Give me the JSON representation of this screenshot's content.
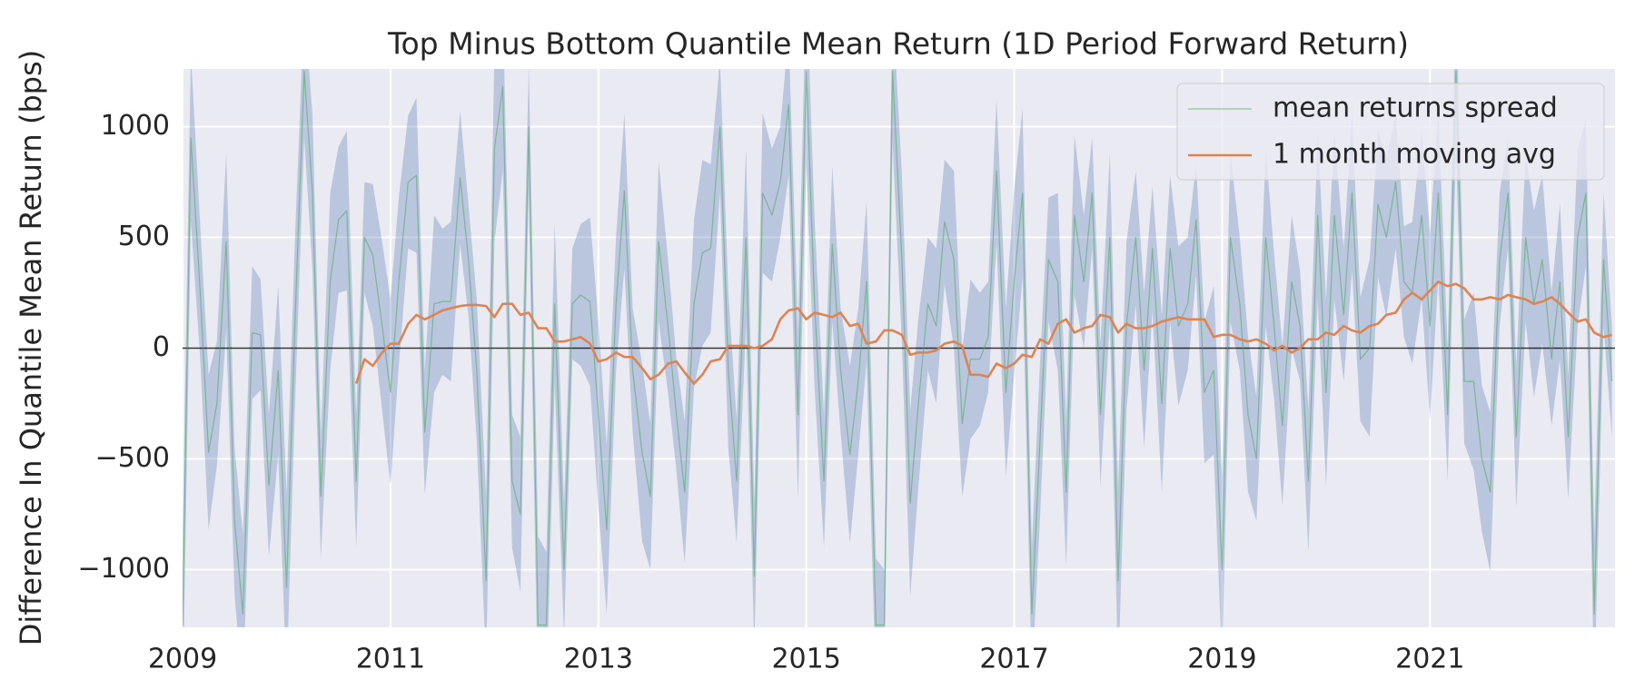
{
  "chart_data": {
    "type": "line",
    "title": "Top Minus Bottom Quantile Mean Return (1D Period Forward Return)",
    "y_label": "Difference In Quantile Mean Return (bps)",
    "x": [
      2009,
      2009.08,
      2009.17,
      2009.25,
      2009.33,
      2009.42,
      2009.5,
      2009.58,
      2009.67,
      2009.75,
      2009.83,
      2009.92,
      2010,
      2010.08,
      2010.17,
      2010.25,
      2010.33,
      2010.42,
      2010.5,
      2010.58,
      2010.67,
      2010.75,
      2010.83,
      2010.92,
      2011,
      2011.08,
      2011.17,
      2011.25,
      2011.33,
      2011.42,
      2011.5,
      2011.58,
      2011.67,
      2011.75,
      2011.83,
      2011.92,
      2012,
      2012.08,
      2012.17,
      2012.25,
      2012.33,
      2012.42,
      2012.5,
      2012.58,
      2012.67,
      2012.75,
      2012.83,
      2012.92,
      2013,
      2013.08,
      2013.17,
      2013.25,
      2013.33,
      2013.42,
      2013.5,
      2013.58,
      2013.67,
      2013.75,
      2013.83,
      2013.92,
      2014,
      2014.08,
      2014.17,
      2014.25,
      2014.33,
      2014.42,
      2014.5,
      2014.58,
      2014.67,
      2014.75,
      2014.83,
      2014.92,
      2015,
      2015.08,
      2015.17,
      2015.25,
      2015.33,
      2015.42,
      2015.5,
      2015.58,
      2015.67,
      2015.75,
      2015.83,
      2015.92,
      2016,
      2016.08,
      2016.17,
      2016.25,
      2016.33,
      2016.42,
      2016.5,
      2016.58,
      2016.67,
      2016.75,
      2016.83,
      2016.92,
      2017,
      2017.08,
      2017.17,
      2017.25,
      2017.33,
      2017.42,
      2017.5,
      2017.58,
      2017.67,
      2017.75,
      2017.83,
      2017.92,
      2018,
      2018.08,
      2018.17,
      2018.25,
      2018.33,
      2018.42,
      2018.5,
      2018.58,
      2018.67,
      2018.75,
      2018.83,
      2018.92,
      2019,
      2019.08,
      2019.17,
      2019.25,
      2019.33,
      2019.42,
      2019.5,
      2019.58,
      2019.67,
      2019.75,
      2019.83,
      2019.92,
      2020,
      2020.08,
      2020.17,
      2020.25,
      2020.33,
      2020.42,
      2020.5,
      2020.58,
      2020.67,
      2020.75,
      2020.83,
      2020.92,
      2021,
      2021.08,
      2021.17,
      2021.25,
      2021.33,
      2021.42,
      2021.5,
      2021.58,
      2021.67,
      2021.75,
      2021.83,
      2021.92,
      2022,
      2022.08,
      2022.17,
      2022.25,
      2022.33,
      2022.42,
      2022.5,
      2022.58,
      2022.67,
      2022.75
    ],
    "band_color": "#4c72b0",
    "series": [
      {
        "name": "mean returns spread",
        "color": "#55a868",
        "values": [
          -1250,
          950,
          250,
          -470,
          -250,
          480,
          -780,
          -1200,
          70,
          60,
          -620,
          -100,
          -1080,
          100,
          1250,
          700,
          -670,
          300,
          580,
          620,
          -600,
          500,
          420,
          100,
          -200,
          300,
          750,
          780,
          -380,
          200,
          210,
          210,
          770,
          400,
          -100,
          -1050,
          900,
          1180,
          -600,
          -750,
          1000,
          -1250,
          -1250,
          200,
          -1000,
          200,
          240,
          210,
          -300,
          -820,
          200,
          710,
          -100,
          -470,
          -670,
          480,
          100,
          -300,
          -650,
          200,
          430,
          450,
          1000,
          -100,
          -600,
          500,
          -1030,
          700,
          600,
          750,
          1100,
          -300,
          1250,
          200,
          -600,
          470,
          -100,
          -480,
          -150,
          300,
          -1250,
          -1250,
          1250,
          400,
          -700,
          -240,
          200,
          100,
          570,
          400,
          -340,
          -50,
          -50,
          50,
          800,
          -200,
          300,
          700,
          -1200,
          -400,
          400,
          300,
          -650,
          600,
          300,
          700,
          -300,
          500,
          -1050,
          100,
          500,
          -100,
          450,
          -250,
          450,
          100,
          200,
          580,
          -200,
          -100,
          -1000,
          500,
          200,
          -300,
          -500,
          500,
          100,
          -350,
          300,
          100,
          -600,
          600,
          -200,
          600,
          150,
          700,
          -50,
          0,
          650,
          500,
          750,
          300,
          250,
          600,
          100,
          700,
          -300,
          1250,
          -150,
          -150,
          -500,
          -650,
          400,
          700,
          -400,
          500,
          200,
          400,
          -50,
          300,
          -400,
          500,
          700,
          -1200,
          400,
          -150
        ],
        "std": [
          420,
          380,
          300,
          350,
          280,
          400,
          330,
          360,
          300,
          250,
          320,
          380,
          420,
          380,
          300,
          350,
          280,
          400,
          330,
          360,
          300,
          250,
          320,
          380,
          420,
          380,
          300,
          350,
          280,
          400,
          330,
          360,
          300,
          250,
          320,
          380,
          420,
          380,
          300,
          350,
          280,
          400,
          330,
          360,
          300,
          250,
          320,
          380,
          420,
          380,
          300,
          350,
          280,
          400,
          330,
          360,
          300,
          250,
          320,
          380,
          420,
          380,
          300,
          350,
          280,
          400,
          330,
          360,
          300,
          250,
          320,
          380,
          420,
          380,
          300,
          350,
          280,
          400,
          330,
          360,
          300,
          250,
          320,
          380,
          420,
          380,
          300,
          350,
          280,
          400,
          330,
          360,
          300,
          250,
          320,
          380,
          420,
          380,
          300,
          350,
          280,
          400,
          330,
          360,
          300,
          250,
          320,
          380,
          420,
          380,
          300,
          350,
          280,
          400,
          330,
          360,
          300,
          250,
          320,
          380,
          420,
          380,
          300,
          350,
          280,
          400,
          330,
          360,
          300,
          250,
          320,
          380,
          420,
          380,
          300,
          350,
          280,
          400,
          330,
          360,
          300,
          250,
          320,
          380,
          420,
          380,
          300,
          350,
          280,
          400,
          330,
          360,
          300,
          250,
          320,
          380,
          420,
          380,
          300,
          350,
          280,
          400,
          330,
          360,
          300,
          250
        ]
      },
      {
        "name": "1 month moving avg",
        "color": "#dd8452",
        "values": [
          null,
          null,
          null,
          null,
          null,
          null,
          null,
          null,
          null,
          null,
          null,
          null,
          null,
          null,
          null,
          null,
          null,
          null,
          null,
          null,
          -160,
          -50,
          -80,
          -20,
          20,
          20,
          110,
          150,
          130,
          150,
          170,
          180,
          190,
          195,
          195,
          190,
          140,
          200,
          200,
          150,
          160,
          90,
          90,
          30,
          30,
          40,
          50,
          20,
          -60,
          -50,
          -20,
          -40,
          -40,
          -90,
          -140,
          -120,
          -70,
          -60,
          -110,
          -160,
          -120,
          -60,
          -50,
          10,
          10,
          10,
          0,
          10,
          40,
          130,
          170,
          180,
          130,
          160,
          150,
          140,
          160,
          100,
          110,
          20,
          30,
          80,
          80,
          60,
          -30,
          -20,
          -20,
          -10,
          20,
          30,
          10,
          -120,
          -120,
          -130,
          -70,
          -90,
          -70,
          -30,
          -40,
          40,
          20,
          110,
          130,
          70,
          90,
          100,
          150,
          140,
          70,
          110,
          90,
          90,
          100,
          120,
          130,
          140,
          130,
          130,
          130,
          50,
          60,
          60,
          40,
          30,
          40,
          20,
          -10,
          10,
          -20,
          0,
          40,
          40,
          70,
          60,
          100,
          80,
          70,
          100,
          110,
          150,
          160,
          220,
          250,
          220,
          260,
          300,
          280,
          290,
          270,
          220,
          220,
          230,
          220,
          240,
          230,
          220,
          200,
          210,
          230,
          200,
          160,
          120,
          130,
          70,
          50,
          60
        ]
      }
    ],
    "hline": 0,
    "xlim": [
      2009,
      2022.78
    ],
    "xticks": [
      2009,
      2011,
      2013,
      2015,
      2017,
      2019,
      2021
    ],
    "ylim": [
      -1260,
      1260
    ],
    "yticks": [
      {
        "value": -1000,
        "label": "−1000"
      },
      {
        "value": -500,
        "label": "−500"
      },
      0,
      500,
      1000
    ],
    "grid": true,
    "legend": "upper right"
  }
}
